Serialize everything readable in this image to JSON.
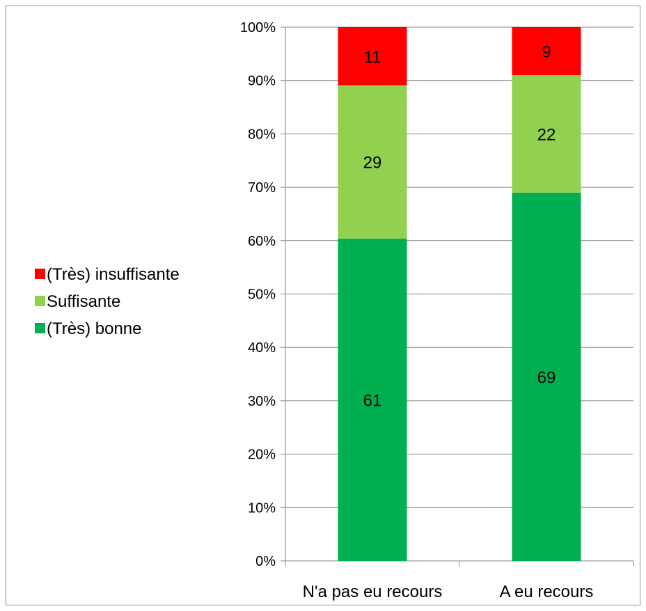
{
  "chart_data": {
    "type": "bar",
    "stacked": true,
    "categories": [
      "N'a pas eu recours",
      "A eu recours"
    ],
    "series": [
      {
        "name": "(Très) bonne",
        "values": [
          61,
          69
        ],
        "color": "#00b050"
      },
      {
        "name": "Suffisante",
        "values": [
          29,
          22
        ],
        "color": "#92d050"
      },
      {
        "name": "(Très) insuffisante",
        "values": [
          11,
          9
        ],
        "color": "#ff0000"
      }
    ],
    "y_ticks": [
      "0%",
      "10%",
      "20%",
      "30%",
      "40%",
      "50%",
      "60%",
      "70%",
      "80%",
      "90%",
      "100%"
    ],
    "ylim": [
      0,
      100
    ],
    "grid": true,
    "legend_position": "left",
    "legend_order": [
      "(Très) insuffisante",
      "Suffisante",
      "(Très) bonne"
    ]
  }
}
